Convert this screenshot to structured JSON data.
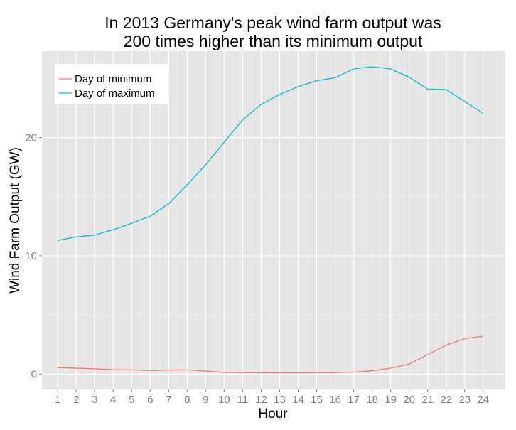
{
  "chart_data": {
    "type": "line",
    "title_lines": [
      "In 2013 Germany's peak wind farm output was",
      "200 times higher than its minimum output"
    ],
    "xlabel": "Hour",
    "ylabel": "Wind Farm Output (GW)",
    "x": [
      1,
      2,
      3,
      4,
      5,
      6,
      7,
      8,
      9,
      10,
      11,
      12,
      13,
      14,
      15,
      16,
      17,
      18,
      19,
      20,
      21,
      22,
      23,
      24
    ],
    "x_tick_labels": [
      "1",
      "2",
      "3",
      "4",
      "5",
      "6",
      "7",
      "8",
      "9",
      "10",
      "11",
      "12",
      "13",
      "14",
      "15",
      "16",
      "17",
      "18",
      "19",
      "20",
      "21",
      "22",
      "23",
      "24"
    ],
    "y_ticks": [
      0,
      10,
      20
    ],
    "y_tick_labels": [
      "0",
      "10",
      "20"
    ],
    "xlim": [
      0.15,
      25.2
    ],
    "ylim": [
      -1.3,
      27.3
    ],
    "grid": true,
    "legend_position": "top-left",
    "series": [
      {
        "name": "Day of minimum",
        "color": "#F8766D",
        "values": [
          0.55,
          0.5,
          0.45,
          0.38,
          0.36,
          0.3,
          0.35,
          0.36,
          0.26,
          0.14,
          0.13,
          0.12,
          0.11,
          0.11,
          0.12,
          0.13,
          0.17,
          0.28,
          0.5,
          0.85,
          1.65,
          2.45,
          3.0,
          3.2
        ]
      },
      {
        "name": "Day of maximum",
        "color": "#00BFC4",
        "values": [
          11.3,
          11.6,
          11.75,
          12.2,
          12.75,
          13.35,
          14.4,
          16.0,
          17.7,
          19.6,
          21.5,
          22.8,
          23.65,
          24.3,
          24.8,
          25.05,
          25.8,
          25.98,
          25.8,
          25.1,
          24.1,
          24.05,
          23.05,
          22.05
        ]
      }
    ]
  }
}
